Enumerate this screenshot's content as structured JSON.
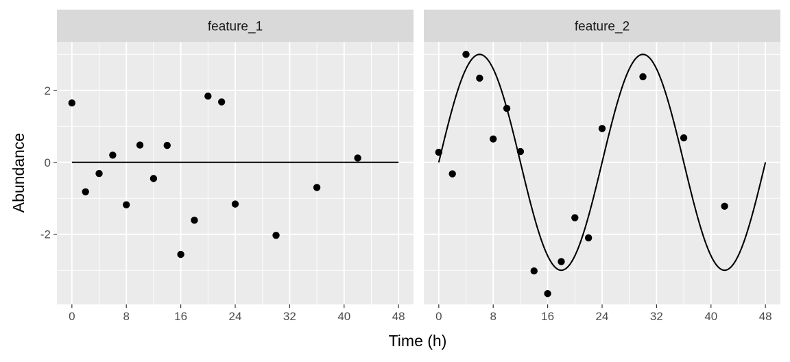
{
  "chart_data": {
    "type": "scatter",
    "xlabel": "Time (h)",
    "ylabel": "Abundance",
    "xlim": [
      -2.2,
      50.2
    ],
    "ylim": [
      -3.95,
      3.35
    ],
    "x_ticks": [
      0,
      8,
      16,
      24,
      32,
      40,
      48
    ],
    "y_ticks": [
      -2,
      0,
      2
    ],
    "grid": true,
    "panels": [
      {
        "name": "feature_1",
        "points": [
          [
            0,
            1.65
          ],
          [
            2,
            -0.82
          ],
          [
            4,
            -0.31
          ],
          [
            6,
            0.2
          ],
          [
            8,
            -1.18
          ],
          [
            10,
            0.48
          ],
          [
            12,
            -0.45
          ],
          [
            14,
            0.47
          ],
          [
            16,
            -2.56
          ],
          [
            18,
            -1.61
          ],
          [
            20,
            1.84
          ],
          [
            22,
            1.68
          ],
          [
            24,
            -1.16
          ],
          [
            30,
            -2.03
          ],
          [
            36,
            -0.7
          ],
          [
            42,
            0.12
          ]
        ],
        "fit": {
          "type": "cosinor",
          "period": 24,
          "amplitude": 0,
          "mesor": 0
        }
      },
      {
        "name": "feature_2",
        "points": [
          [
            0,
            0.28
          ],
          [
            2,
            -0.32
          ],
          [
            4,
            3.0
          ],
          [
            6,
            2.34
          ],
          [
            8,
            0.65
          ],
          [
            10,
            1.5
          ],
          [
            12,
            0.3
          ],
          [
            14,
            -3.02
          ],
          [
            16,
            -3.65
          ],
          [
            18,
            -2.76
          ],
          [
            20,
            -1.54
          ],
          [
            22,
            -2.1
          ],
          [
            24,
            0.94
          ],
          [
            30,
            2.38
          ],
          [
            36,
            0.68
          ],
          [
            42,
            -1.22
          ]
        ],
        "fit": {
          "type": "cosinor",
          "period": 24,
          "amplitude": 3,
          "mesor": 0
        }
      }
    ]
  }
}
